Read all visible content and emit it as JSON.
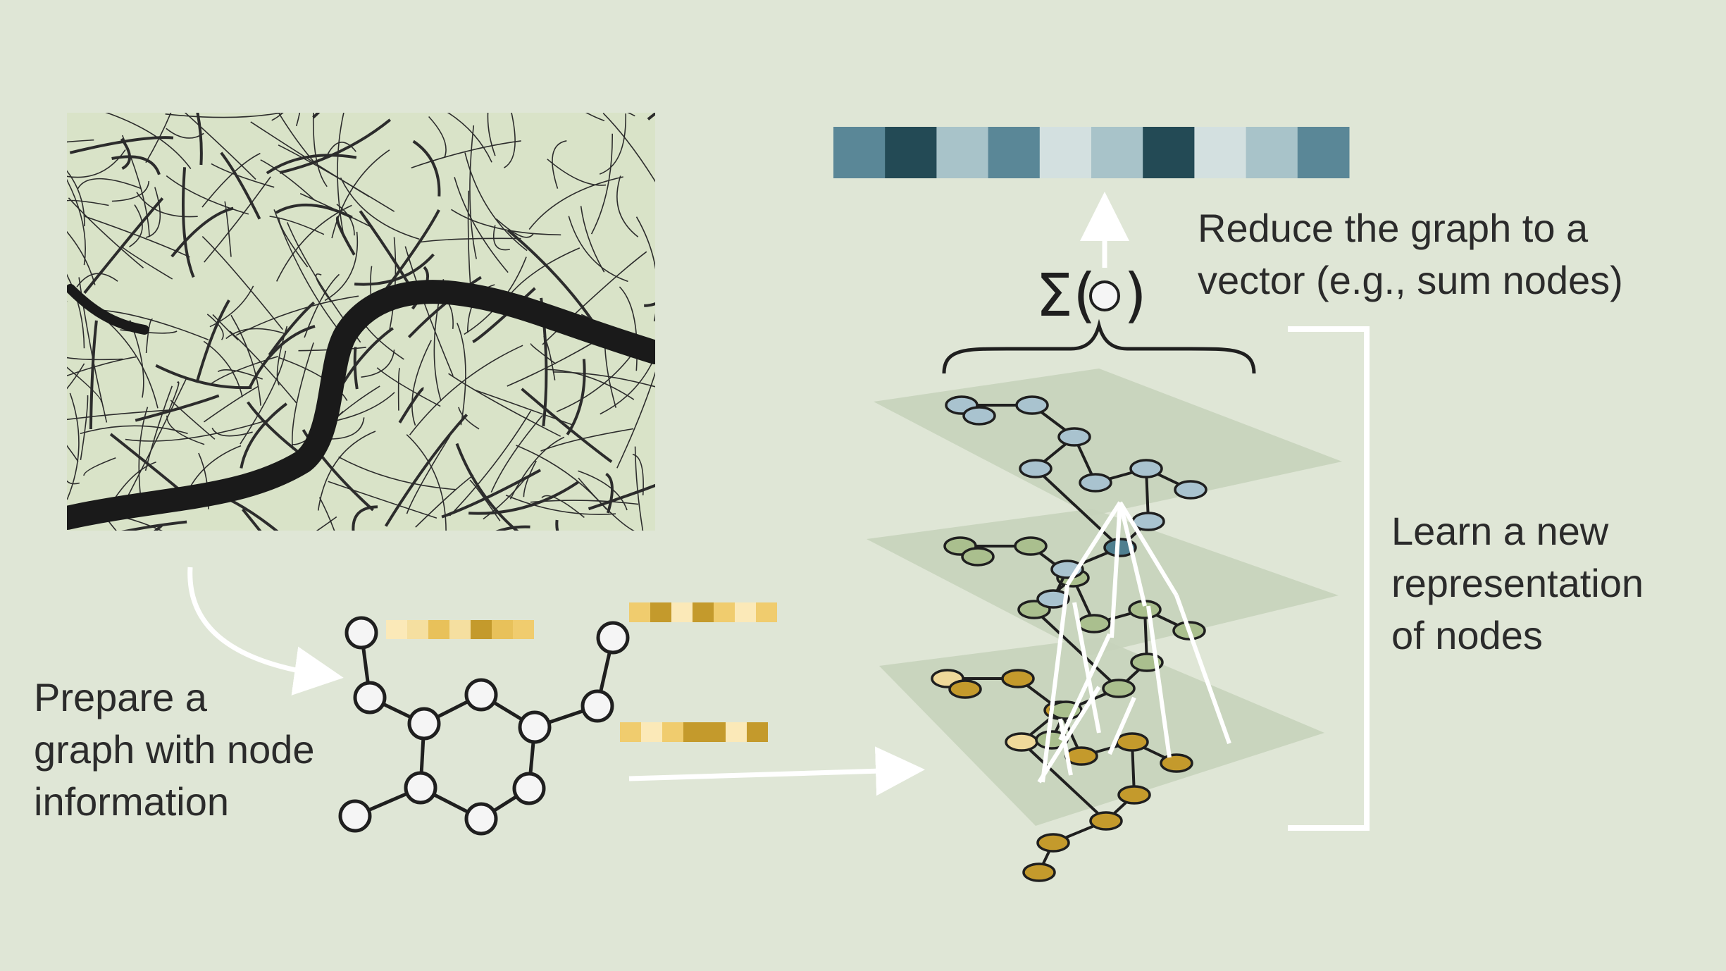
{
  "labels": {
    "prepare": [
      "Prepare a",
      "graph with node",
      "information"
    ],
    "reduce": [
      "Reduce the graph to a",
      "vector (e.g., sum nodes)"
    ],
    "learn": [
      "Learn a new",
      "representation",
      "of nodes"
    ]
  },
  "sum_symbol": "Σ(",
  "sum_close": ")",
  "colors": {
    "background": "#dfe6d6",
    "layer_plane": "#c7d3bb",
    "map_road": "#2c2c2c",
    "river": "#1a1a1a",
    "node_outline": "#1f1f1f",
    "node_input": "#f5f5f5",
    "node_top": "#a9c3cf",
    "node_top_center": "#4f7f8f",
    "node_mid": "#aabf8e",
    "node_bottom": "#c49a2c",
    "node_bottom_light": "#efd99a",
    "arrow": "#ffffff"
  },
  "output_vector": [
    "#5a8797",
    "#234a55",
    "#a8c3c9",
    "#5a8797",
    "#d3e0e0",
    "#a8c3c9",
    "#234a55",
    "#d3e0e0",
    "#a8c3c9",
    "#5a8797"
  ],
  "feature_vectors": [
    [
      "#fbe9b8",
      "#f5dfa0",
      "#e8c15a",
      "#f5dfa0",
      "#c49a2c",
      "#e8c15a",
      "#f0cc6e"
    ],
    [
      "#f0cc6e",
      "#c49a2c",
      "#fbe9b8",
      "#c49a2c",
      "#f0cc6e",
      "#fbe9b8",
      "#f0cc6e"
    ],
    [
      "#f0cc6e",
      "#fbe9b8",
      "#f0cc6e",
      "#c49a2c",
      "#c49a2c",
      "#fbe9b8",
      "#c49a2c"
    ]
  ]
}
